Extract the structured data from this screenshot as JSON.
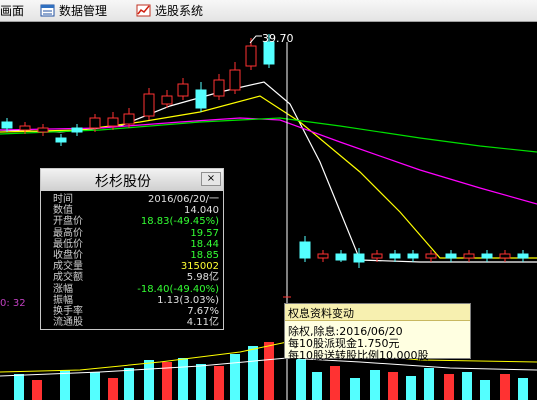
{
  "toolbar": {
    "partial_item": "画面",
    "data_management": "数据管理",
    "stock_selection": "选股系统"
  },
  "price_high_label": "39.70",
  "left_axis_partial": "0: 32",
  "info_panel": {
    "title": "杉杉股份",
    "close_symbol": "×",
    "rows": [
      {
        "label": "时间",
        "value": "2016/06/20/一",
        "color": "#e0e0e0"
      },
      {
        "label": "数值",
        "value": "14.040",
        "color": "#e0e0e0"
      },
      {
        "label": "开盘价",
        "value": "18.83(-49.45%)",
        "color": "#33ff33"
      },
      {
        "label": "最高价",
        "value": "19.57",
        "color": "#33ff33"
      },
      {
        "label": "最低价",
        "value": "18.44",
        "color": "#33ff33"
      },
      {
        "label": "收盘价",
        "value": "18.85",
        "color": "#33ff33"
      },
      {
        "label": "成交量",
        "value": "315002",
        "color": "#ffff33"
      },
      {
        "label": "成交额",
        "value": "5.98亿",
        "color": "#e0e0e0"
      },
      {
        "label": "涨幅",
        "value": "-18.40(-49.40%)",
        "color": "#33ff33"
      },
      {
        "label": "振幅",
        "value": "1.13(3.03%)",
        "color": "#e0e0e0"
      },
      {
        "label": "换手率",
        "value": "7.67%",
        "color": "#e0e0e0"
      },
      {
        "label": "流通股",
        "value": "4.11亿",
        "color": "#e0e0e0"
      }
    ]
  },
  "dividend_tip": {
    "title": "权息资料变动",
    "line1": "除权,除息:2016/06/20",
    "line2": "每10股派现金1.750元",
    "line3": "每10股送转股比例10.000股"
  },
  "colors": {
    "up": "#ff3232",
    "down": "#54ffff",
    "ma_white": "#ffffff",
    "ma_yellow": "#ffff00",
    "ma_magenta": "#ff00ff",
    "ma_green": "#00e000",
    "volume_up": "#ff3232",
    "volume_down": "#54ffff"
  }
}
